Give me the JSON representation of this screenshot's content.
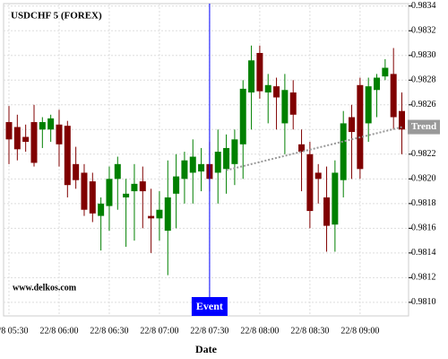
{
  "chart_data": {
    "type": "candlestick",
    "title": "USDCHF 5 (FOREX)",
    "x_label": "Date",
    "watermark": "www.delkos.com",
    "categories": [
      "22/8 05:30",
      null,
      null,
      null,
      null,
      null,
      "22/8 06:00",
      null,
      null,
      null,
      null,
      null,
      "22/8 06:30",
      null,
      null,
      null,
      null,
      null,
      "22/8 07:00",
      null,
      null,
      null,
      null,
      null,
      "22/8 07:30",
      null,
      null,
      null,
      null,
      null,
      "22/8 08:00",
      null,
      null,
      null,
      null,
      null,
      "22/8 08:30",
      null,
      null,
      null,
      null,
      null,
      "22/8 09:00",
      null,
      null,
      null,
      null,
      null
    ],
    "open": [
      0.98246,
      0.98242,
      0.98234,
      0.98246,
      0.9824,
      0.9824,
      0.98244,
      0.98243,
      0.98212,
      0.98205,
      0.98198,
      0.9817,
      0.98178,
      0.982,
      0.98185,
      0.9819,
      0.98198,
      0.9817,
      0.98168,
      0.98158,
      0.98188,
      0.982,
      0.98205,
      0.98206,
      0.98212,
      0.98205,
      0.98208,
      0.98212,
      0.98228,
      0.9827,
      0.98302,
      0.9827,
      0.98275,
      0.98245,
      0.9827,
      0.98228,
      0.9822,
      0.98205,
      0.98185,
      0.98163,
      0.98199,
      0.9825,
      0.98276,
      0.98245,
      0.98272,
      0.98283,
      0.98285,
      0.98255
    ],
    "high": [
      0.98259,
      0.98252,
      0.98244,
      0.9826,
      0.9825,
      0.98252,
      0.98256,
      0.98247,
      0.98226,
      0.98212,
      0.98205,
      0.98185,
      0.9821,
      0.98218,
      0.982,
      0.98212,
      0.9821,
      0.98192,
      0.9819,
      0.98215,
      0.9822,
      0.98222,
      0.98232,
      0.98225,
      0.9823,
      0.9824,
      0.98236,
      0.9824,
      0.9828,
      0.98308,
      0.98308,
      0.98285,
      0.98282,
      0.98285,
      0.9828,
      0.9824,
      0.9823,
      0.98212,
      0.9821,
      0.98215,
      0.98255,
      0.9826,
      0.98282,
      0.98282,
      0.98285,
      0.98297,
      0.98306,
      0.9827
    ],
    "low": [
      0.98212,
      0.98215,
      0.98222,
      0.9821,
      0.98225,
      0.9823,
      0.9821,
      0.98185,
      0.98192,
      0.9817,
      0.98165,
      0.98142,
      0.98158,
      0.98175,
      0.98145,
      0.9815,
      0.9816,
      0.9814,
      0.9815,
      0.98122,
      0.9816,
      0.9818,
      0.9818,
      0.9819,
      0.9819,
      0.9818,
      0.98188,
      0.98195,
      0.982,
      0.9824,
      0.98265,
      0.98245,
      0.9824,
      0.9822,
      0.9824,
      0.9819,
      0.9816,
      0.9818,
      0.98141,
      0.98141,
      0.98185,
      0.982,
      0.982,
      0.9823,
      0.9825,
      0.9828,
      0.9824,
      0.9822
    ],
    "close": [
      0.98232,
      0.98224,
      0.9823,
      0.98213,
      0.98246,
      0.98249,
      0.98228,
      0.98195,
      0.98199,
      0.98175,
      0.98172,
      0.9818,
      0.982,
      0.98212,
      0.98188,
      0.98196,
      0.9819,
      0.98168,
      0.98175,
      0.98185,
      0.98202,
      0.98215,
      0.98218,
      0.98212,
      0.982,
      0.98222,
      0.98225,
      0.98232,
      0.98273,
      0.98296,
      0.98271,
      0.98276,
      0.98266,
      0.98272,
      0.98252,
      0.98222,
      0.98174,
      0.982,
      0.98162,
      0.98205,
      0.98245,
      0.98238,
      0.98208,
      0.98275,
      0.98282,
      0.9829,
      0.9825,
      0.9824
    ],
    "up_color": "#008000",
    "down_color": "#800000",
    "ylim": [
      0.98089,
      0.98342
    ],
    "yticks": [
      {
        "value": 0.981,
        "label": "0.9810"
      },
      0.9812,
      0.9814,
      0.9816,
      0.9818,
      {
        "value": 0.982,
        "label": "0.9820"
      },
      0.9822,
      0.9824,
      0.9826,
      0.9828,
      {
        "value": 0.983,
        "label": "0.9830"
      },
      0.9832,
      0.9834
    ],
    "grid": true,
    "event": {
      "label": "Event",
      "index": 24,
      "color": "#0000ff"
    },
    "trend": {
      "label": "Trend",
      "start_index": 26,
      "start_value": 0.98207,
      "end_index": 47,
      "end_value": 0.98242,
      "color": "#999999"
    }
  }
}
